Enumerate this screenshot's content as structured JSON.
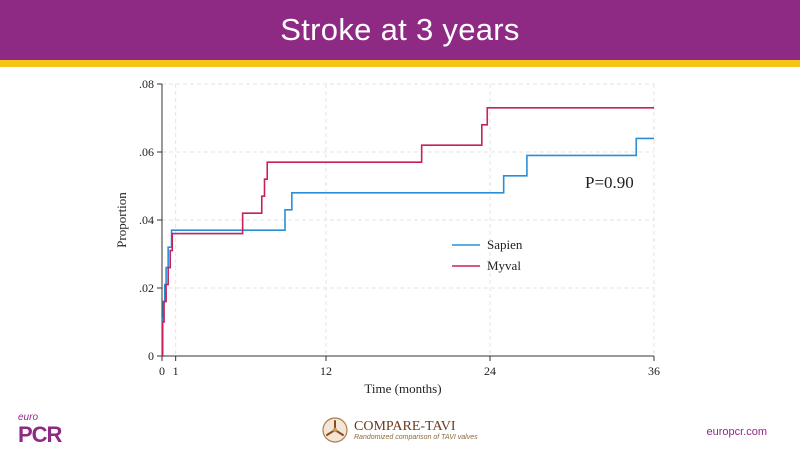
{
  "header": {
    "title": "Stroke at 3 years"
  },
  "colors": {
    "header_bg": "#8e2a84",
    "stripe": "#f5c518",
    "sapien": "#2b8fd6",
    "myval": "#c8205a"
  },
  "chart_data": {
    "type": "line",
    "title": "",
    "xlabel": "Time (months)",
    "ylabel": "Proportion",
    "xlim": [
      0,
      36
    ],
    "ylim": [
      0,
      0.08
    ],
    "x_ticks": [
      0,
      1,
      12,
      24,
      36
    ],
    "x_tick_labels": [
      "0",
      "1",
      "12",
      "24",
      "36"
    ],
    "y_ticks": [
      0,
      0.02,
      0.04,
      0.06,
      0.08
    ],
    "y_tick_labels": [
      "0",
      ".02",
      ".04",
      ".06",
      ".08"
    ],
    "grid": true,
    "legend_position": "center-right",
    "annotation": "P=0.90",
    "series": [
      {
        "name": "Sapien",
        "color": "#2b8fd6",
        "step_points": [
          [
            0,
            0
          ],
          [
            0.05,
            0.011
          ],
          [
            0.1,
            0.016
          ],
          [
            0.2,
            0.021
          ],
          [
            0.3,
            0.026
          ],
          [
            0.45,
            0.032
          ],
          [
            0.7,
            0.037
          ],
          [
            9.0,
            0.043
          ],
          [
            9.5,
            0.048
          ],
          [
            25.0,
            0.053
          ],
          [
            26.7,
            0.059
          ],
          [
            34.7,
            0.064
          ],
          [
            36,
            0.064
          ]
        ]
      },
      {
        "name": "Myval",
        "color": "#c8205a",
        "step_points": [
          [
            0,
            0
          ],
          [
            0.05,
            0.01
          ],
          [
            0.15,
            0.016
          ],
          [
            0.3,
            0.021
          ],
          [
            0.45,
            0.026
          ],
          [
            0.6,
            0.031
          ],
          [
            0.75,
            0.036
          ],
          [
            5.9,
            0.042
          ],
          [
            7.3,
            0.047
          ],
          [
            7.5,
            0.052
          ],
          [
            7.7,
            0.057
          ],
          [
            19.0,
            0.062
          ],
          [
            23.4,
            0.068
          ],
          [
            23.8,
            0.073
          ],
          [
            36,
            0.073
          ]
        ]
      }
    ]
  },
  "footer": {
    "logo_euro": "euro",
    "logo_pcr": "PCR",
    "center_name": "COMPARE-TAVI",
    "center_sub": "Randomized comparison of TAVI valves",
    "url": "europcr.com"
  }
}
